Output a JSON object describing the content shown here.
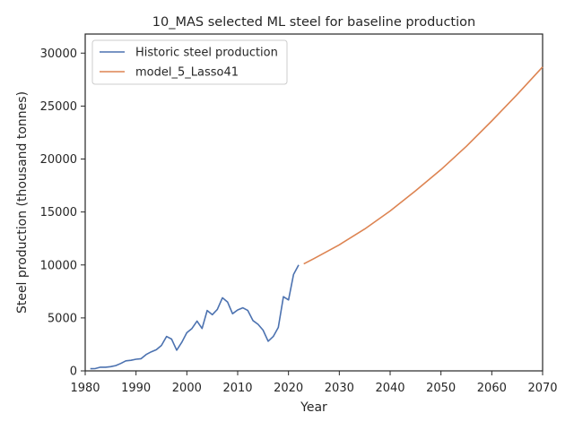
{
  "chart_data": {
    "type": "line",
    "title": "10_MAS selected ML steel for baseline production",
    "xlabel": "Year",
    "ylabel": "Steel production (thousand tonnes)",
    "xlim": [
      1980,
      2070
    ],
    "ylim": [
      0,
      31800
    ],
    "xticks": [
      1980,
      1990,
      2000,
      2010,
      2020,
      2030,
      2040,
      2050,
      2060,
      2070
    ],
    "yticks": [
      0,
      5000,
      10000,
      15000,
      20000,
      25000,
      30000
    ],
    "grid": false,
    "legend_position": "top-left",
    "series": [
      {
        "name": "Historic steel production",
        "color": "#4c72b0",
        "x": [
          1981,
          1982,
          1983,
          1984,
          1985,
          1986,
          1987,
          1988,
          1989,
          1990,
          1991,
          1992,
          1993,
          1994,
          1995,
          1996,
          1997,
          1998,
          1999,
          2000,
          2001,
          2002,
          2003,
          2004,
          2005,
          2006,
          2007,
          2008,
          2009,
          2010,
          2011,
          2012,
          2013,
          2014,
          2015,
          2016,
          2017,
          2018,
          2019,
          2020,
          2021,
          2022
        ],
        "y": [
          200,
          220,
          350,
          350,
          400,
          500,
          700,
          950,
          1000,
          1100,
          1150,
          1550,
          1800,
          2000,
          2400,
          3250,
          3000,
          1950,
          2700,
          3600,
          4000,
          4700,
          4000,
          5700,
          5300,
          5800,
          6900,
          6500,
          5400,
          5750,
          5950,
          5700,
          4750,
          4400,
          3850,
          2800,
          3250,
          4100,
          7000,
          6700,
          9100,
          10000
        ]
      },
      {
        "name": "model_5_Lasso41",
        "color": "#dd8452",
        "x": [
          2023,
          2025,
          2030,
          2035,
          2040,
          2045,
          2050,
          2055,
          2060,
          2065,
          2070
        ],
        "y": [
          10100,
          10600,
          11900,
          13400,
          15100,
          17000,
          19000,
          21200,
          23600,
          26100,
          28700
        ]
      }
    ]
  }
}
